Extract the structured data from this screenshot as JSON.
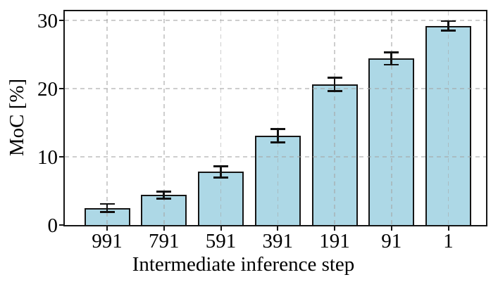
{
  "chart_data": {
    "type": "bar",
    "title": "",
    "xlabel": "Intermediate inference step",
    "ylabel": "MoC [%]",
    "categories": [
      "991",
      "791",
      "591",
      "391",
      "191",
      "91",
      "1"
    ],
    "values": [
      2.5,
      4.4,
      7.8,
      13.1,
      20.6,
      24.4,
      29.2
    ],
    "errors": [
      0.6,
      0.5,
      0.8,
      1.0,
      1.0,
      0.9,
      0.7
    ],
    "yticks": [
      0,
      10,
      20,
      30
    ],
    "ylim": [
      0,
      31.3
    ],
    "grid": "dashed gridlines on both axes, drawn over bars",
    "legend_position": "none",
    "colors": {
      "bar_fill": "#ADD8E6",
      "bar_edge": "#151515",
      "errorbar": "#111111",
      "grid": "#c9c9c9",
      "text": "#000000",
      "background": "#ffffff"
    }
  }
}
